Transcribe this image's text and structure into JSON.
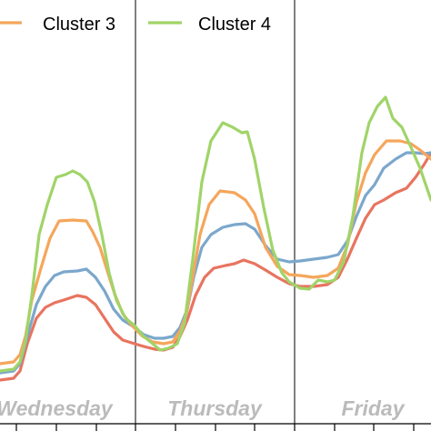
{
  "chart_data": {
    "type": "line",
    "series": [
      {
        "name": "Cluster 3",
        "color": "#f5a65b"
      },
      {
        "name": "Cluster 4",
        "color": "#a0d468"
      },
      {
        "name": "",
        "color": "#7ba7cc"
      },
      {
        "name": "",
        "color": "#e8745f"
      }
    ],
    "day_labels": [
      "Wednesday",
      "Thursday",
      "Friday"
    ],
    "legend": {
      "placement": "top",
      "entries": [
        "Cluster 3",
        "Cluster 4"
      ]
    },
    "grid": false
  }
}
